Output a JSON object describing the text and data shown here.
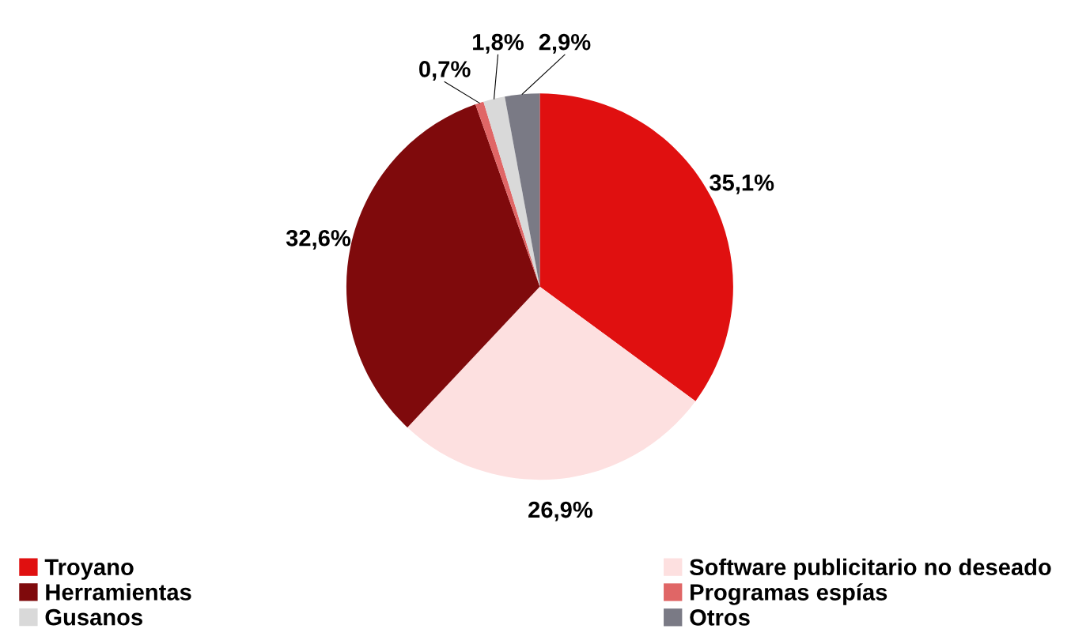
{
  "chart_data": {
    "type": "pie",
    "categories": [
      "Troyano",
      "Software publicitario no deseado",
      "Herramientas",
      "Programas espías",
      "Gusanos",
      "Otros"
    ],
    "values": [
      35.1,
      26.9,
      32.6,
      0.7,
      1.8,
      2.9
    ],
    "colors": [
      "#e01010",
      "#fde0e0",
      "#7f0a0c",
      "#e06666",
      "#d9d9d9",
      "#7a7a85"
    ],
    "value_labels": [
      "35,1%",
      "26,9%",
      "32,6%",
      "0,7%",
      "1,8%",
      "2,9%"
    ],
    "legend": "bottom"
  }
}
